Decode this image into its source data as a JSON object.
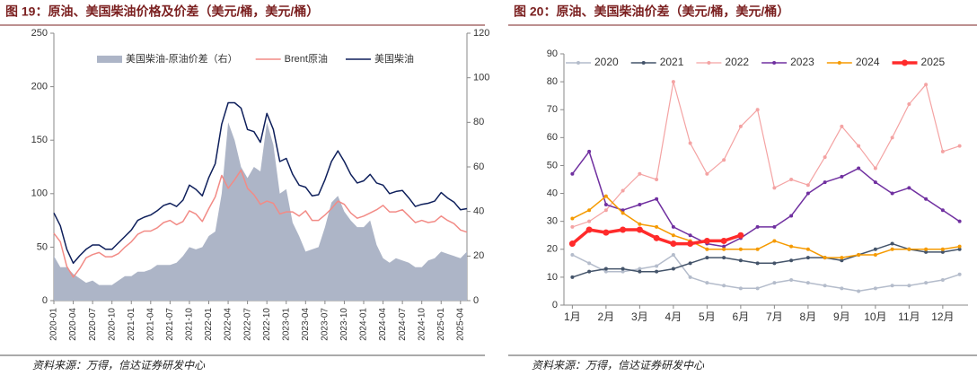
{
  "chart_data": [
    {
      "type": "line",
      "title": "图 19：原油、美国柴油价格及价差（美元/桶，美元/桶）",
      "source": "资料来源：万得，信达证券研发中心",
      "categories": [
        "2020-01",
        null,
        null,
        "2020-04",
        null,
        null,
        "2020-07",
        null,
        null,
        "2020-10",
        null,
        null,
        "2021-01",
        null,
        null,
        "2021-04",
        null,
        null,
        "2021-07",
        null,
        null,
        "2021-10",
        null,
        null,
        "2022-01",
        null,
        null,
        "2022-04",
        null,
        null,
        "2022-07",
        null,
        null,
        "2022-10",
        null,
        null,
        "2023-01",
        null,
        null,
        "2023-04",
        null,
        null,
        "2023-07",
        null,
        null,
        "2023-10",
        null,
        null,
        "2024-01",
        null,
        null,
        "2024-04",
        null,
        null,
        "2024-07",
        null,
        null,
        "2024-10",
        null,
        null,
        "2025-01",
        null,
        null,
        "2025-04",
        null
      ],
      "ylim": [
        0,
        250
      ],
      "yticks": [
        0,
        50,
        100,
        150,
        200,
        250
      ],
      "y2lim": [
        0,
        120
      ],
      "y2ticks": [
        0,
        20,
        40,
        60,
        80,
        100,
        120
      ],
      "series": [
        {
          "name": "美国柴油-原油价差（右）",
          "color": "#adb5c7",
          "style": "area",
          "axis": "y2",
          "values": [
            20,
            15,
            15,
            12,
            10,
            8,
            9,
            7,
            7,
            7,
            9,
            11,
            11,
            13,
            13,
            14,
            16,
            16,
            16,
            17,
            20,
            24,
            23,
            24,
            29,
            31,
            48,
            80,
            72,
            60,
            55,
            60,
            58,
            80,
            70,
            48,
            50,
            35,
            29,
            22,
            23,
            24,
            33,
            44,
            47,
            40,
            36,
            33,
            33,
            36,
            25,
            19,
            17,
            19,
            18,
            17,
            15,
            15,
            18,
            19,
            22,
            21,
            20,
            19,
            22
          ]
        },
        {
          "name": "Brent原油",
          "color": "#f28b86",
          "style": "line",
          "values": [
            63,
            55,
            32,
            22,
            30,
            40,
            43,
            45,
            41,
            41,
            44,
            50,
            55,
            62,
            65,
            65,
            68,
            73,
            75,
            71,
            74,
            84,
            81,
            74,
            86,
            97,
            117,
            105,
            113,
            122,
            105,
            99,
            90,
            93,
            91,
            81,
            83,
            83,
            79,
            84,
            75,
            75,
            80,
            86,
            93,
            90,
            82,
            77,
            79,
            82,
            85,
            89,
            83,
            83,
            85,
            79,
            73,
            75,
            73,
            74,
            79,
            75,
            72,
            66,
            64
          ]
        },
        {
          "name": "美国柴油",
          "color": "#0e1f5b",
          "style": "line",
          "values": [
            82,
            70,
            48,
            35,
            42,
            48,
            52,
            52,
            48,
            48,
            54,
            60,
            66,
            75,
            78,
            80,
            84,
            89,
            91,
            88,
            94,
            108,
            104,
            98,
            115,
            128,
            165,
            185,
            185,
            180,
            160,
            158,
            148,
            175,
            160,
            130,
            133,
            118,
            108,
            106,
            98,
            99,
            113,
            130,
            140,
            130,
            118,
            110,
            112,
            118,
            110,
            108,
            100,
            102,
            103,
            96,
            88,
            90,
            91,
            93,
            101,
            96,
            92,
            85,
            86
          ]
        }
      ]
    },
    {
      "type": "line",
      "title": "图 20：原油、美国柴油价差（美元/桶，美元/桶）",
      "source": "资料来源：万得，信达证券研发中心",
      "categories": [
        "1月",
        null,
        "2月",
        null,
        "3月",
        null,
        "4月",
        null,
        "5月",
        null,
        "6月",
        null,
        "7月",
        null,
        "8月",
        null,
        "9月",
        null,
        "10月",
        null,
        "11月",
        null,
        "12月",
        null
      ],
      "ylim": [
        0,
        90
      ],
      "yticks": [
        0,
        10,
        20,
        30,
        40,
        50,
        60,
        70,
        80,
        90
      ],
      "series": [
        {
          "name": "2020",
          "color": "#b4bccb",
          "width": 1.5,
          "values": [
            18,
            15,
            12,
            12,
            13,
            14,
            18,
            10,
            8,
            7,
            6,
            6,
            8,
            9,
            8,
            7,
            6,
            5,
            6,
            7,
            7,
            8,
            9,
            11
          ]
        },
        {
          "name": "2021",
          "color": "#44546a",
          "width": 1.5,
          "values": [
            10,
            12,
            13,
            13,
            12,
            12,
            13,
            15,
            17,
            17,
            16,
            15,
            15,
            16,
            17,
            17,
            16,
            18,
            20,
            22,
            20,
            19,
            19,
            20
          ]
        },
        {
          "name": "2022",
          "color": "#f4a3a3",
          "width": 1.2,
          "values": [
            28,
            30,
            34,
            41,
            47,
            45,
            80,
            58,
            47,
            52,
            64,
            70,
            42,
            45,
            43,
            53,
            64,
            57,
            49,
            60,
            72,
            79,
            55,
            57
          ]
        },
        {
          "name": "2023",
          "color": "#7030a0",
          "width": 1.5,
          "values": [
            47,
            55,
            36,
            34,
            36,
            38,
            28,
            25,
            22,
            21,
            24,
            28,
            28,
            32,
            40,
            44,
            46,
            49,
            44,
            40,
            42,
            38,
            34,
            30
          ]
        },
        {
          "name": "2024",
          "color": "#f59a00",
          "width": 1.5,
          "values": [
            31,
            34,
            39,
            33,
            29,
            28,
            25,
            23,
            20,
            20,
            20,
            20,
            23,
            21,
            20,
            17,
            17,
            18,
            18,
            20,
            20,
            20,
            20,
            21
          ]
        },
        {
          "name": "2025",
          "color": "#ff2b2b",
          "width": 3.5,
          "values": [
            22,
            27,
            26,
            27,
            27,
            24,
            22,
            22,
            23,
            23,
            25,
            null,
            null,
            null,
            null,
            null,
            null,
            null,
            null,
            null,
            null,
            null,
            null,
            null
          ]
        }
      ]
    }
  ]
}
